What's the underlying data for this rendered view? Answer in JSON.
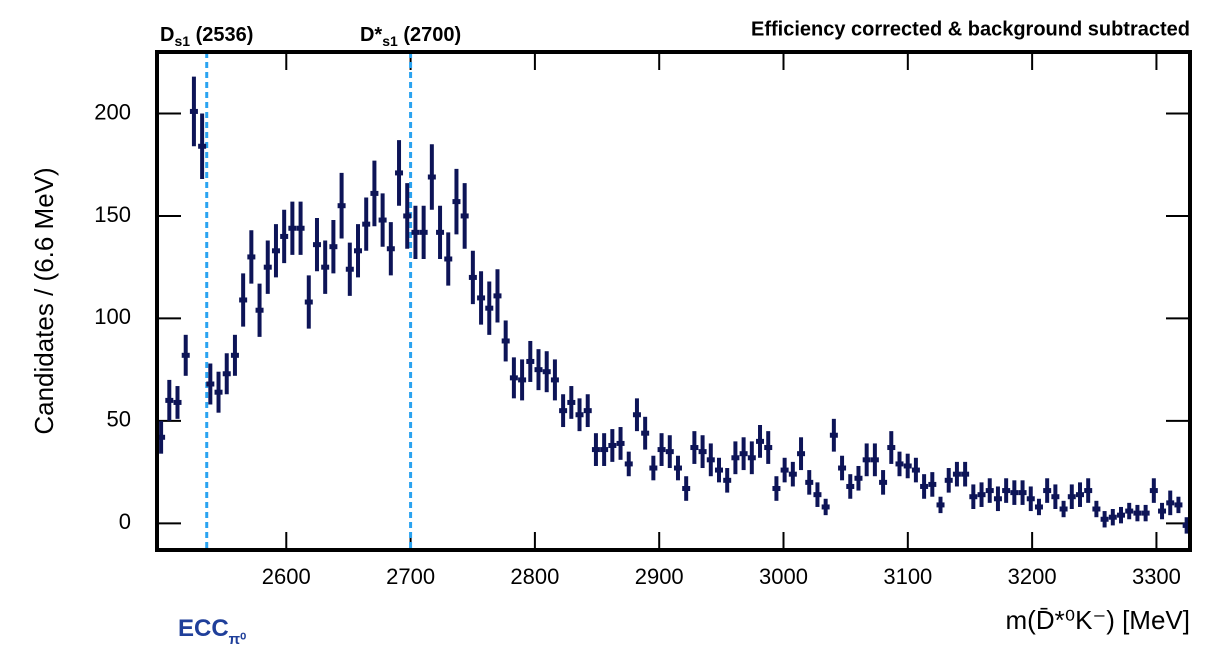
{
  "chart_data": {
    "type": "errorbar",
    "title": "Efficiency corrected & background subtracted",
    "x_label": "m(D̄*⁰K⁻) [MeV]",
    "y_label": "Candidates / (6.6 MeV)",
    "annotation": {
      "main": "ECC",
      "sub": "π⁰"
    },
    "color": "#0d1457",
    "reference_lines": [
      {
        "x": 2536,
        "main": "D",
        "sub": "s1",
        "rest": " (2536)"
      },
      {
        "x": 2700,
        "main": "D*",
        "sub": "s1",
        "rest": " (2700)"
      }
    ],
    "reference_color": "#2aa3f0",
    "xlim": [
      2496,
      3327
    ],
    "ylim": [
      -13,
      230
    ],
    "xticks": [
      2600,
      2700,
      2800,
      2900,
      3000,
      3100,
      3200,
      3300
    ],
    "yticks": [
      0,
      50,
      100,
      150,
      200
    ],
    "x": [
      2499.3,
      2505.9,
      2512.5,
      2519.1,
      2525.7,
      2532.3,
      2538.9,
      2545.5,
      2552.1,
      2558.7,
      2565.3,
      2571.9,
      2578.5,
      2585.1,
      2591.7,
      2598.3,
      2604.9,
      2611.5,
      2618.1,
      2624.7,
      2631.3,
      2637.9,
      2644.5,
      2651.1,
      2657.7,
      2664.3,
      2670.9,
      2677.5,
      2684.1,
      2690.7,
      2697.3,
      2703.9,
      2710.5,
      2717.1,
      2723.7,
      2730.3,
      2736.9,
      2743.5,
      2750.1,
      2756.7,
      2763.3,
      2769.9,
      2776.5,
      2783.1,
      2789.7,
      2796.3,
      2802.9,
      2809.5,
      2816.1,
      2822.7,
      2829.3,
      2835.9,
      2842.5,
      2849.1,
      2855.7,
      2862.3,
      2868.9,
      2875.5,
      2882.1,
      2888.7,
      2895.3,
      2901.9,
      2908.5,
      2915.1,
      2921.7,
      2928.3,
      2934.9,
      2941.5,
      2948.1,
      2954.7,
      2961.3,
      2967.9,
      2974.5,
      2981.1,
      2987.7,
      2994.3,
      3000.9,
      3007.5,
      3014.1,
      3020.7,
      3027.3,
      3033.9,
      3040.5,
      3047.1,
      3053.7,
      3060.3,
      3066.9,
      3073.5,
      3080.1,
      3086.7,
      3093.3,
      3099.9,
      3106.5,
      3113.1,
      3119.7,
      3126.3,
      3132.9,
      3139.5,
      3146.1,
      3152.7,
      3159.3,
      3165.9,
      3172.5,
      3179.1,
      3185.7,
      3192.3,
      3198.9,
      3205.5,
      3212.1,
      3218.7,
      3225.3,
      3231.9,
      3238.5,
      3245.1,
      3251.7,
      3258.3,
      3264.9,
      3271.5,
      3278.1,
      3284.7,
      3291.3,
      3297.9,
      3304.5,
      3311.1,
      3317.7,
      3324.3
    ],
    "values": [
      42,
      60,
      59,
      82,
      201,
      184,
      68,
      64,
      73,
      82,
      109,
      130,
      104,
      125,
      133,
      140,
      144,
      144,
      108,
      136,
      125,
      135,
      155,
      124,
      133,
      146,
      161,
      148,
      134,
      171,
      150,
      142,
      142,
      169,
      142,
      129,
      157,
      150,
      120,
      110,
      105,
      111,
      89,
      71,
      70,
      79,
      75,
      74,
      70,
      55,
      59,
      53,
      55,
      36,
      36,
      38,
      39,
      29,
      53,
      44,
      27,
      36,
      35,
      27,
      17,
      37,
      35,
      31,
      26,
      21,
      32,
      34,
      32,
      40,
      37,
      17,
      26,
      24,
      34,
      20,
      14,
      8,
      43,
      27,
      18,
      22,
      31,
      31,
      20,
      37,
      29,
      28,
      26,
      18,
      19,
      9,
      21,
      24,
      24,
      13,
      14,
      16,
      12,
      16,
      15,
      15,
      12,
      8,
      16,
      13,
      7,
      13,
      14,
      16,
      7,
      2,
      3,
      4,
      6,
      5,
      5,
      16,
      6,
      10,
      9,
      -1
    ],
    "errors": [
      8,
      10,
      8,
      10,
      17,
      16,
      10,
      10,
      10,
      10,
      13,
      13,
      13,
      13,
      13,
      13,
      13,
      13,
      13,
      13,
      13,
      13,
      16,
      13,
      13,
      13,
      16,
      13,
      13,
      16,
      16,
      13,
      13,
      16,
      13,
      13,
      16,
      16,
      13,
      13,
      13,
      13,
      10,
      10,
      10,
      10,
      10,
      10,
      10,
      8,
      8,
      8,
      8,
      8,
      8,
      8,
      8,
      6,
      8,
      8,
      6,
      8,
      8,
      6,
      6,
      8,
      8,
      8,
      6,
      6,
      8,
      8,
      8,
      8,
      8,
      6,
      6,
      6,
      8,
      6,
      6,
      4,
      8,
      6,
      6,
      6,
      8,
      8,
      6,
      8,
      6,
      6,
      6,
      6,
      6,
      4,
      6,
      6,
      6,
      6,
      6,
      6,
      6,
      6,
      6,
      6,
      6,
      4,
      6,
      6,
      4,
      6,
      6,
      6,
      4,
      4,
      4,
      4,
      4,
      4,
      4,
      6,
      4,
      6,
      4,
      4
    ]
  }
}
